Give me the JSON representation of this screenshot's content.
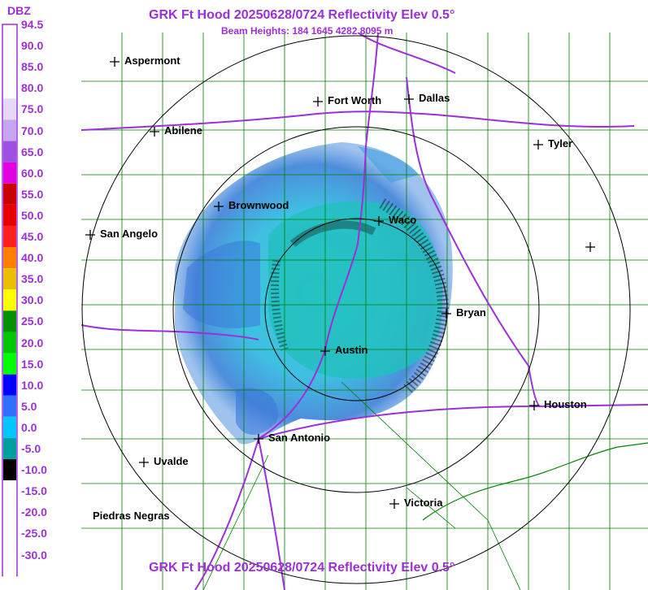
{
  "title": "GRK Ft Hood 20250628/0724 Reflectivity Elev 0.5°",
  "beam_heights": "Beam Heights: 184 1645 4282 8095 m",
  "legend": {
    "unit": "DBZ",
    "ticks": [
      "94.5",
      "90.0",
      "85.0",
      "80.0",
      "75.0",
      "70.0",
      "65.0",
      "60.0",
      "55.0",
      "50.0",
      "45.0",
      "40.0",
      "35.0",
      "30.0",
      "25.0",
      "20.0",
      "15.0",
      "10.0",
      "5.0",
      "0.0",
      "-5.0",
      "-10.0",
      "-15.0",
      "-20.0",
      "-25.0",
      "-30.0"
    ],
    "colors": [
      "#ffffff",
      "#ffffff",
      "#ffffff",
      "#e8d8f5",
      "#c6a6ef",
      "#a050e0",
      "#e000e0",
      "#c80000",
      "#e80000",
      "#ff2020",
      "#ff8000",
      "#e8c000",
      "#ffff00",
      "#009000",
      "#00c800",
      "#00ff00",
      "#0000ff",
      "#3070ff",
      "#00c8ff",
      "#00a0a0",
      "#000000",
      "#ffffff",
      "#ffffff",
      "#ffffff",
      "#ffffff",
      "#ffffff"
    ]
  },
  "cities": [
    {
      "name": "Aspermont"
    },
    {
      "name": "Fort Worth"
    },
    {
      "name": "Dallas"
    },
    {
      "name": "Abilene"
    },
    {
      "name": "Tyler"
    },
    {
      "name": "Brownwood"
    },
    {
      "name": "Waco"
    },
    {
      "name": "San Angelo"
    },
    {
      "name": "Bryan"
    },
    {
      "name": "Austin"
    },
    {
      "name": "Houston"
    },
    {
      "name": "San Antonio"
    },
    {
      "name": "Uvalde"
    },
    {
      "name": "Victoria"
    },
    {
      "name": "Piedras Negras"
    }
  ],
  "colors": {
    "title": "#9b30d9",
    "border": "#008000",
    "highway": "#9b30d9",
    "range_ring": "#000000"
  }
}
